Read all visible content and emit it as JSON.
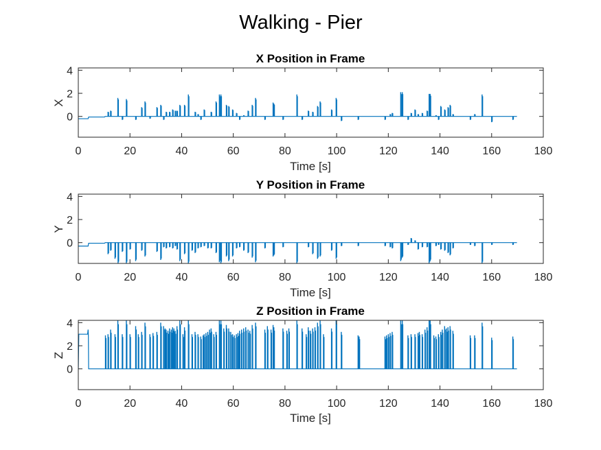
{
  "figure_title": "Walking - Pier",
  "colors": {
    "series": "#0072BD",
    "axis": "#262626",
    "background": "#ffffff"
  },
  "chart_data": [
    {
      "type": "line",
      "title": "X Position in Frame",
      "xlabel": "Time [s]",
      "ylabel": "X",
      "xlim": [
        0,
        180
      ],
      "ylim": [
        -1.8,
        4.2
      ],
      "xticks": [
        0,
        20,
        40,
        60,
        80,
        100,
        120,
        140,
        160,
        180
      ],
      "yticks": [
        0,
        2,
        4
      ],
      "grid": false,
      "baseline": {
        "x": [
          0,
          3.8,
          4,
          10.2,
          10.4,
          169.8
        ],
        "y": [
          -0.2,
          -0.2,
          -0.05,
          -0.05,
          0,
          0
        ]
      },
      "spikes": [
        [
          11.5,
          0.4
        ],
        [
          12.5,
          0.5
        ],
        [
          15.3,
          1.6
        ],
        [
          17,
          -0.3
        ],
        [
          18.6,
          1.5
        ],
        [
          22.2,
          -0.3
        ],
        [
          24.5,
          0.8
        ],
        [
          25.8,
          1.3
        ],
        [
          27.7,
          -0.2
        ],
        [
          30.4,
          0.8
        ],
        [
          31.9,
          1.0
        ],
        [
          33,
          -0.3
        ],
        [
          34,
          0.4
        ],
        [
          35.3,
          0.4
        ],
        [
          36.5,
          0.6
        ],
        [
          37.5,
          0.5
        ],
        [
          38.2,
          0.5
        ],
        [
          39.3,
          1.0
        ],
        [
          41.1,
          1.0
        ],
        [
          42.6,
          1.9
        ],
        [
          45.2,
          0.4
        ],
        [
          46.3,
          0.2
        ],
        [
          47.4,
          -0.3
        ],
        [
          48.7,
          0.6
        ],
        [
          51.4,
          0.4
        ],
        [
          53.3,
          1.3
        ],
        [
          54.6,
          1.9
        ],
        [
          55.2,
          1.9
        ],
        [
          57.3,
          1.0
        ],
        [
          58.2,
          0.9
        ],
        [
          59.7,
          0.6
        ],
        [
          61.2,
          0.3
        ],
        [
          62.4,
          -0.3
        ],
        [
          64,
          0.1
        ],
        [
          65.7,
          0.5
        ],
        [
          67.3,
          1.0
        ],
        [
          68.6,
          1.6
        ],
        [
          72.2,
          -0.3
        ],
        [
          75.4,
          1.2
        ],
        [
          75.7,
          1.1
        ],
        [
          79.2,
          -0.3
        ],
        [
          84.6,
          1.9
        ],
        [
          86.6,
          -0.3
        ],
        [
          89,
          0.5
        ],
        [
          90.7,
          0.4
        ],
        [
          92.6,
          0.9
        ],
        [
          93.6,
          1.3
        ],
        [
          98,
          0.6
        ],
        [
          99.8,
          1.6
        ],
        [
          101.8,
          -0.4
        ],
        [
          108.3,
          -0.3
        ],
        [
          118.7,
          -0.3
        ],
        [
          120.7,
          0.2
        ],
        [
          121.5,
          0.3
        ],
        [
          124.8,
          2.1
        ],
        [
          125.4,
          2.1
        ],
        [
          127.6,
          -0.3
        ],
        [
          128.8,
          0.3
        ],
        [
          130.3,
          0.6
        ],
        [
          131.5,
          0.2
        ],
        [
          133.1,
          0.3
        ],
        [
          135,
          0.5
        ],
        [
          135.8,
          1.95
        ],
        [
          136.2,
          1.95
        ],
        [
          138.4,
          0.1
        ],
        [
          139.4,
          -0.3
        ],
        [
          140.3,
          0.9
        ],
        [
          141.8,
          0.6
        ],
        [
          143.1,
          0.8
        ],
        [
          143.9,
          1.0
        ],
        [
          145,
          0.2
        ],
        [
          151.7,
          -0.3
        ],
        [
          153.4,
          0.2
        ],
        [
          156.3,
          1.9
        ],
        [
          160,
          -0.5
        ],
        [
          168.2,
          -0.3
        ]
      ]
    },
    {
      "type": "line",
      "title": "Y Position in Frame",
      "xlabel": "Time [s]",
      "ylabel": "Y",
      "xlim": [
        0,
        180
      ],
      "ylim": [
        -1.8,
        4.2
      ],
      "xticks": [
        0,
        20,
        40,
        60,
        80,
        100,
        120,
        140,
        160,
        180
      ],
      "yticks": [
        0,
        2,
        4
      ],
      "grid": false,
      "baseline": {
        "x": [
          0,
          3.8,
          4,
          10.2,
          10.4,
          169.8
        ],
        "y": [
          -0.3,
          -0.3,
          -0.05,
          -0.05,
          0,
          0
        ]
      },
      "spikes": [
        [
          11.5,
          -1.0
        ],
        [
          12.5,
          -0.7
        ],
        [
          14.2,
          -1.4
        ],
        [
          15.4,
          -1.8
        ],
        [
          17,
          -0.8
        ],
        [
          18.6,
          -1.8
        ],
        [
          20,
          -0.6
        ],
        [
          22.2,
          -1.6
        ],
        [
          24.5,
          -0.7
        ],
        [
          25.8,
          -1.2
        ],
        [
          30.4,
          -0.8
        ],
        [
          31.9,
          -1.5
        ],
        [
          33,
          -0.4
        ],
        [
          34,
          -0.5
        ],
        [
          35.3,
          -0.4
        ],
        [
          36.5,
          -0.5
        ],
        [
          37.5,
          -0.3
        ],
        [
          38.2,
          -0.6
        ],
        [
          39.3,
          -1.6
        ],
        [
          41.1,
          -1.0
        ],
        [
          42.6,
          -1.8
        ],
        [
          44,
          -0.7
        ],
        [
          45.2,
          -0.9
        ],
        [
          46.3,
          -0.5
        ],
        [
          47.4,
          -0.4
        ],
        [
          48.7,
          -0.3
        ],
        [
          50.1,
          -0.5
        ],
        [
          51.4,
          -0.5
        ],
        [
          53.3,
          -0.9
        ],
        [
          54.6,
          -1.7
        ],
        [
          55.2,
          -1.8
        ],
        [
          57.3,
          -1.2
        ],
        [
          58.2,
          -1.6
        ],
        [
          59.7,
          -1.2
        ],
        [
          61.2,
          -0.5
        ],
        [
          62.4,
          -0.4
        ],
        [
          64,
          -0.7
        ],
        [
          65.7,
          -0.9
        ],
        [
          67.3,
          -1.3
        ],
        [
          68.6,
          -1.7
        ],
        [
          72.2,
          -0.5
        ],
        [
          75.4,
          -1.2
        ],
        [
          75.7,
          -1.1
        ],
        [
          79.2,
          -0.4
        ],
        [
          84.6,
          -1.8
        ],
        [
          89,
          -0.4
        ],
        [
          90.7,
          -1.0
        ],
        [
          92.6,
          -1.4
        ],
        [
          93.6,
          -1.2
        ],
        [
          98,
          -0.7
        ],
        [
          99.8,
          -1.4
        ],
        [
          101.8,
          -0.3
        ],
        [
          108.3,
          -0.3
        ],
        [
          118.7,
          -0.3
        ],
        [
          120.7,
          -0.4
        ],
        [
          121.5,
          -0.5
        ],
        [
          124.8,
          -1.6
        ],
        [
          125.4,
          -1.3
        ],
        [
          127.6,
          -0.2
        ],
        [
          128.8,
          0.4
        ],
        [
          130.3,
          0.2
        ],
        [
          131.5,
          -0.6
        ],
        [
          133.1,
          -0.4
        ],
        [
          135,
          -0.4
        ],
        [
          135.8,
          -1.8
        ],
        [
          136.2,
          -1.6
        ],
        [
          138.4,
          -0.3
        ],
        [
          139.4,
          -0.2
        ],
        [
          140.3,
          -0.6
        ],
        [
          141.8,
          -0.7
        ],
        [
          143.1,
          -0.9
        ],
        [
          143.9,
          -1.1
        ],
        [
          145,
          -0.5
        ],
        [
          151.7,
          -0.2
        ],
        [
          153.4,
          -0.3
        ],
        [
          156.3,
          -1.8
        ],
        [
          160,
          -0.2
        ],
        [
          168.2,
          -0.2
        ]
      ]
    },
    {
      "type": "line",
      "title": "Z Position in Frame",
      "xlabel": "Time [s]",
      "ylabel": "Z",
      "xlim": [
        0,
        180
      ],
      "ylim": [
        -1.8,
        4.2
      ],
      "xticks": [
        0,
        20,
        40,
        60,
        80,
        100,
        120,
        140,
        160,
        180
      ],
      "yticks": [
        0,
        2,
        4
      ],
      "grid": false,
      "baseline": {
        "x": [
          0,
          0.2,
          3.6,
          3.8,
          3.9,
          4,
          169.8
        ],
        "y": [
          0,
          3.0,
          3.0,
          3.4,
          2.9,
          0,
          0
        ]
      },
      "spikes": [
        [
          10.5,
          2.9
        ],
        [
          11.5,
          3.0
        ],
        [
          12.5,
          3.4
        ],
        [
          14.2,
          3.0
        ],
        [
          15.3,
          4.2
        ],
        [
          17,
          3.0
        ],
        [
          18.6,
          4.2
        ],
        [
          20,
          3.0
        ],
        [
          22.2,
          3.7
        ],
        [
          23.2,
          3.0
        ],
        [
          24.5,
          3.2
        ],
        [
          25.8,
          4.0
        ],
        [
          27.7,
          3.0
        ],
        [
          28.9,
          3.1
        ],
        [
          30.4,
          3.2
        ],
        [
          31.9,
          4.0
        ],
        [
          33,
          3.7
        ],
        [
          33.6,
          3.5
        ],
        [
          34,
          3.4
        ],
        [
          34.7,
          3.3
        ],
        [
          35.3,
          3.5
        ],
        [
          36,
          3.4
        ],
        [
          36.5,
          3.6
        ],
        [
          37,
          3.5
        ],
        [
          37.5,
          3.3
        ],
        [
          38.2,
          3.7
        ],
        [
          39.3,
          4.2
        ],
        [
          40.5,
          3.0
        ],
        [
          41.1,
          3.6
        ],
        [
          42.6,
          4.2
        ],
        [
          44,
          3.0
        ],
        [
          45.2,
          3.2
        ],
        [
          46.3,
          3.0
        ],
        [
          47.4,
          2.8
        ],
        [
          48.3,
          2.9
        ],
        [
          48.7,
          3.0
        ],
        [
          49.4,
          3.1
        ],
        [
          50.1,
          3.2
        ],
        [
          50.8,
          3.4
        ],
        [
          51.4,
          3.5
        ],
        [
          52.4,
          3.0
        ],
        [
          53.3,
          3.2
        ],
        [
          54.6,
          4.2
        ],
        [
          55.2,
          4.2
        ],
        [
          56.3,
          3.5
        ],
        [
          57.3,
          3.8
        ],
        [
          58.2,
          3.5
        ],
        [
          59,
          3.2
        ],
        [
          59.7,
          3.0
        ],
        [
          60.4,
          2.9
        ],
        [
          61.2,
          3.0
        ],
        [
          61.8,
          3.1
        ],
        [
          62.4,
          3.3
        ],
        [
          63.2,
          3.4
        ],
        [
          64,
          3.5
        ],
        [
          64.8,
          3.6
        ],
        [
          65.7,
          3.4
        ],
        [
          66.4,
          3.3
        ],
        [
          67.3,
          3.8
        ],
        [
          68.6,
          4.0
        ],
        [
          72.2,
          3.4
        ],
        [
          73.2,
          3.7
        ],
        [
          74.6,
          3.4
        ],
        [
          75.4,
          3.8
        ],
        [
          75.7,
          3.6
        ],
        [
          79.2,
          3.5
        ],
        [
          80.7,
          3.3
        ],
        [
          81.5,
          3.5
        ],
        [
          84.6,
          4.2
        ],
        [
          86.6,
          3.5
        ],
        [
          88.2,
          3.0
        ],
        [
          89,
          3.6
        ],
        [
          89.8,
          3.3
        ],
        [
          90.7,
          3.5
        ],
        [
          91.6,
          3.6
        ],
        [
          92.6,
          4.0
        ],
        [
          93.6,
          4.2
        ],
        [
          94.9,
          3.0
        ],
        [
          98,
          3.5
        ],
        [
          99.8,
          4.2
        ],
        [
          101.8,
          3.2
        ],
        [
          108.3,
          2.9
        ],
        [
          108.7,
          2.8
        ],
        [
          118.7,
          2.8
        ],
        [
          119.3,
          2.9
        ],
        [
          120,
          3.0
        ],
        [
          120.7,
          3.1
        ],
        [
          121.5,
          3.2
        ],
        [
          124.8,
          4.2
        ],
        [
          125.4,
          4.2
        ],
        [
          127.6,
          2.9
        ],
        [
          128.8,
          3.0
        ],
        [
          130.3,
          3.0
        ],
        [
          131.5,
          3.1
        ],
        [
          132,
          3.2
        ],
        [
          133.1,
          3.0
        ],
        [
          134.2,
          3.4
        ],
        [
          135,
          3.6
        ],
        [
          135.8,
          4.2
        ],
        [
          136.2,
          4.2
        ],
        [
          137.6,
          2.9
        ],
        [
          138.4,
          2.8
        ],
        [
          139.4,
          3.0
        ],
        [
          140.3,
          3.2
        ],
        [
          140.9,
          3.4
        ],
        [
          141.8,
          3.7
        ],
        [
          142.5,
          3.5
        ],
        [
          143.1,
          3.6
        ],
        [
          143.9,
          3.7
        ],
        [
          145,
          3.3
        ],
        [
          151.7,
          2.9
        ],
        [
          153.4,
          2.9
        ],
        [
          156.3,
          4.0
        ],
        [
          160,
          2.7
        ],
        [
          168.2,
          2.8
        ]
      ]
    }
  ]
}
